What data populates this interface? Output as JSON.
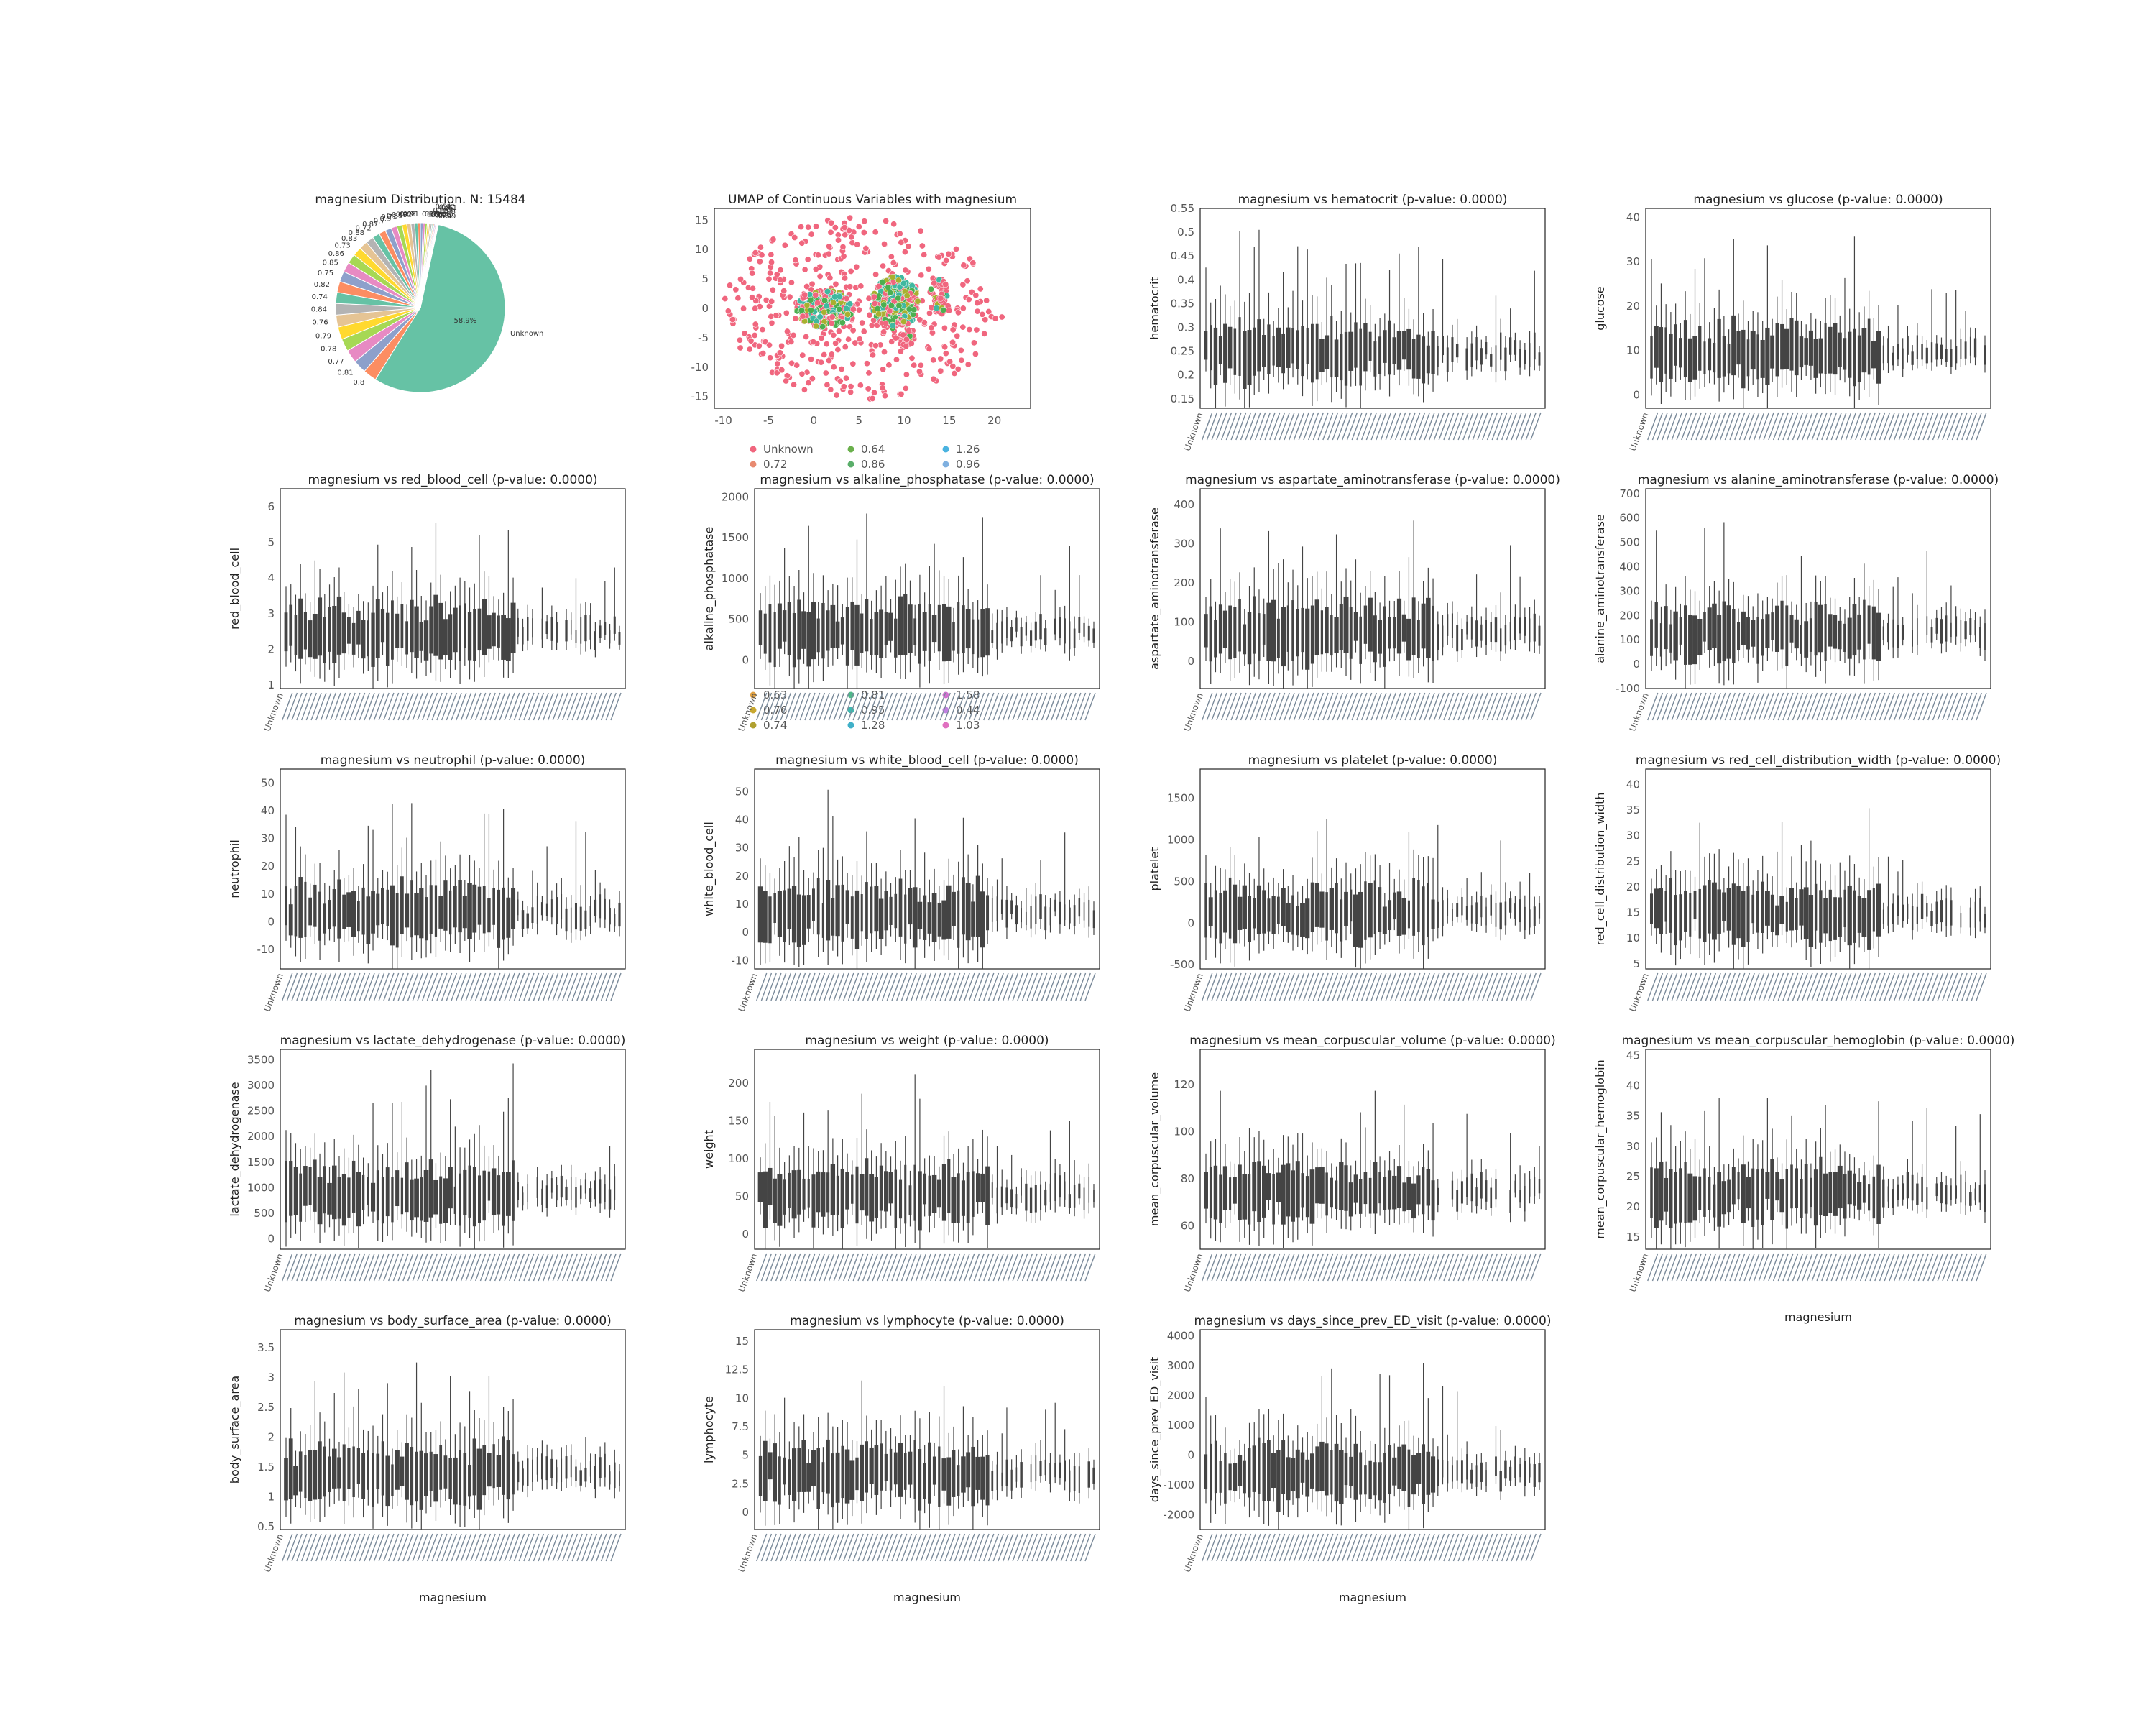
{
  "chart_data": [
    {
      "type": "pie",
      "title": "magnesium Distribution. N: 15484",
      "slices": [
        {
          "label": "Unknown",
          "percent": 58.9,
          "pct_label": "58.9%",
          "color": "#66c2a5"
        },
        {
          "label": "0.8",
          "percent": 2.6,
          "color": "#fc8d62"
        },
        {
          "label": "0.81",
          "percent": 2.5,
          "color": "#8da0cb"
        },
        {
          "label": "0.77",
          "percent": 2.5,
          "color": "#e78ac3"
        },
        {
          "label": "0.78",
          "percent": 2.4,
          "color": "#a6d854"
        },
        {
          "label": "0.79",
          "percent": 2.4,
          "color": "#ffd92f"
        },
        {
          "label": "0.76",
          "percent": 2.3,
          "color": "#e5c494"
        },
        {
          "label": "0.84",
          "percent": 2.2,
          "color": "#b3b3b3"
        },
        {
          "label": "0.74",
          "percent": 2.1,
          "color": "#66c2a5"
        },
        {
          "label": "0.82",
          "percent": 2.1,
          "color": "#fc8d62"
        },
        {
          "label": "0.75",
          "percent": 2.0,
          "color": "#8da0cb"
        },
        {
          "label": "0.85",
          "percent": 1.9,
          "color": "#e78ac3"
        },
        {
          "label": "0.86",
          "percent": 1.8,
          "color": "#a6d854"
        },
        {
          "label": "0.73",
          "percent": 1.7,
          "color": "#ffd92f"
        },
        {
          "label": "0.83",
          "percent": 1.6,
          "color": "#e5c494"
        },
        {
          "label": "0.88",
          "percent": 1.5,
          "color": "#b3b3b3"
        },
        {
          "label": "0.72",
          "percent": 1.4,
          "color": "#66c2a5"
        },
        {
          "label": "0.87",
          "percent": 1.3,
          "color": "#fc8d62"
        },
        {
          "label": "0.7",
          "percent": 1.2,
          "color": "#8da0cb"
        },
        {
          "label": "0.9",
          "percent": 1.1,
          "color": "#e78ac3"
        },
        {
          "label": "0.71",
          "percent": 1.0,
          "color": "#a6d854"
        },
        {
          "label": "0.89",
          "percent": 0.9,
          "color": "#ffd92f"
        },
        {
          "label": "0.69",
          "percent": 0.8,
          "color": "#e5c494"
        },
        {
          "label": "0.92",
          "percent": 0.7,
          "color": "#b3b3b3"
        },
        {
          "label": "0.68",
          "percent": 0.6,
          "color": "#66c2a5"
        },
        {
          "label": "0.91",
          "percent": 0.5,
          "color": "#fc8d62"
        },
        {
          "label": "0.67",
          "percent": 0.5,
          "color": "#8da0cb"
        },
        {
          "label": "0.93",
          "percent": 0.4,
          "color": "#e78ac3"
        },
        {
          "label": "0.66",
          "percent": 0.4,
          "color": "#a6d854"
        },
        {
          "label": "0.94",
          "percent": 0.3,
          "color": "#ffd92f"
        },
        {
          "label": "0.65",
          "percent": 0.3,
          "color": "#e5c494"
        },
        {
          "label": "0.95",
          "percent": 0.3,
          "color": "#b3b3b3"
        },
        {
          "label": "0.64",
          "percent": 0.2,
          "color": "#66c2a5"
        },
        {
          "label": "0.96",
          "percent": 0.2,
          "color": "#fc8d62"
        },
        {
          "label": "0.63",
          "percent": 0.2,
          "color": "#8da0cb"
        },
        {
          "label": "0.97",
          "percent": 0.2,
          "color": "#e78ac3"
        },
        {
          "label": "0.62",
          "percent": 0.1,
          "color": "#a6d854"
        },
        {
          "label": "0.98",
          "percent": 0.1,
          "color": "#ffd92f"
        },
        {
          "label": "0.61",
          "percent": 0.1,
          "color": "#e5c494"
        },
        {
          "label": "0.99",
          "percent": 0.1,
          "color": "#b3b3b3"
        }
      ]
    },
    {
      "type": "scatter",
      "title": "UMAP of Continuous Variables with magnesium",
      "xlabel": "",
      "ylabel": "",
      "xlim": [
        -11,
        24
      ],
      "ylim": [
        -17,
        17
      ],
      "xticks": [
        -10,
        -5,
        0,
        5,
        10,
        15,
        20
      ],
      "yticks": [
        -15,
        -10,
        -5,
        0,
        5,
        10,
        15
      ],
      "colors": {
        "unknown": "#f0667e",
        "green": "#4caf50",
        "teal": "#3fb8a0",
        "olive": "#a8b030"
      },
      "legend": [
        {
          "label": "Unknown",
          "color": "#f0667e"
        },
        {
          "label": "0.64",
          "color": "#6ab04c"
        },
        {
          "label": "1.26",
          "color": "#4ab3e0"
        },
        {
          "label": "0.72",
          "color": "#e88a70"
        },
        {
          "label": "0.86",
          "color": "#5aae6a"
        },
        {
          "label": "0.96",
          "color": "#7fb0e0"
        },
        {
          "label": "0.63",
          "color": "#e0a040"
        },
        {
          "label": "0.81",
          "color": "#4fb88a"
        },
        {
          "label": "1.58",
          "color": "#d070d0"
        },
        {
          "label": "0.76",
          "color": "#c8a830"
        },
        {
          "label": "0.95",
          "color": "#40b8b0"
        },
        {
          "label": "0.44",
          "color": "#c080e0"
        },
        {
          "label": "0.74",
          "color": "#b0a030"
        },
        {
          "label": "1.28",
          "color": "#40b0c8"
        },
        {
          "label": "1.03",
          "color": "#e070c0"
        }
      ]
    }
  ],
  "violin_panels": [
    {
      "title": "magnesium vs hematocrit (p-value: 0.0000)",
      "ylabel": "hematocrit",
      "ylim": [
        0.13,
        0.55
      ],
      "yticks": [
        0.15,
        0.2,
        0.25,
        0.3,
        0.35,
        0.4,
        0.45,
        0.5,
        0.55
      ],
      "xlabel": "magnesium"
    },
    {
      "title": "magnesium vs glucose (p-value: 0.0000)",
      "ylabel": "glucose",
      "ylim": [
        -3,
        42
      ],
      "yticks": [
        0,
        10,
        20,
        30,
        40
      ],
      "xlabel": "magnesium"
    },
    {
      "title": "magnesium vs red_blood_cell (p-value: 0.0000)",
      "ylabel": "red_blood_cell",
      "ylim": [
        0.9,
        6.5
      ],
      "yticks": [
        1,
        2,
        3,
        4,
        5,
        6
      ],
      "xlabel": "magnesium"
    },
    {
      "title": "magnesium vs alkaline_phosphatase (p-value: 0.0000)",
      "ylabel": "alkaline_phosphatase",
      "ylim": [
        -350,
        2100
      ],
      "yticks": [
        0,
        500,
        1000,
        1500,
        2000
      ],
      "xlabel": "magnesium"
    },
    {
      "title": "magnesium vs aspartate_aminotransferase (p-value: 0.0000)",
      "ylabel": "aspartate_aminotransferase",
      "ylim": [
        -70,
        440
      ],
      "yticks": [
        0,
        100,
        200,
        300,
        400
      ],
      "xlabel": "magnesium"
    },
    {
      "title": "magnesium vs alanine_aminotransferase (p-value: 0.0000)",
      "ylabel": "alanine_aminotransferase",
      "ylim": [
        -100,
        720
      ],
      "yticks": [
        -100,
        0,
        100,
        200,
        300,
        400,
        500,
        600,
        700
      ],
      "xlabel": "magnesium"
    },
    {
      "title": "magnesium vs neutrophil (p-value: 0.0000)",
      "ylabel": "neutrophil",
      "ylim": [
        -17,
        55
      ],
      "yticks": [
        -10,
        0,
        10,
        20,
        30,
        40,
        50
      ],
      "xlabel": "magnesium"
    },
    {
      "title": "magnesium vs white_blood_cell (p-value: 0.0000)",
      "ylabel": "white_blood_cell",
      "ylim": [
        -13,
        58
      ],
      "yticks": [
        -10,
        0,
        10,
        20,
        30,
        40,
        50
      ],
      "xlabel": "magnesium"
    },
    {
      "title": "magnesium vs platelet (p-value: 0.0000)",
      "ylabel": "platelet",
      "ylim": [
        -550,
        1850
      ],
      "yticks": [
        -500,
        0,
        500,
        1000,
        1500
      ],
      "xlabel": "magnesium"
    },
    {
      "title": "magnesium vs red_cell_distribution_width (p-value: 0.0000)",
      "ylabel": "red_cell_distribution_width",
      "ylim": [
        4,
        43
      ],
      "yticks": [
        5,
        10,
        15,
        20,
        25,
        30,
        35,
        40
      ],
      "xlabel": "magnesium"
    },
    {
      "title": "magnesium vs lactate_dehydrogenase (p-value: 0.0000)",
      "ylabel": "lactate_dehydrogenase",
      "ylim": [
        -200,
        3700
      ],
      "yticks": [
        0,
        500,
        1000,
        1500,
        2000,
        2500,
        3000,
        3500
      ],
      "xlabel": "magnesium"
    },
    {
      "title": "magnesium vs weight (p-value: 0.0000)",
      "ylabel": "weight",
      "ylim": [
        -20,
        245
      ],
      "yticks": [
        0,
        50,
        100,
        150,
        200
      ],
      "xlabel": "magnesium"
    },
    {
      "title": "magnesium vs mean_corpuscular_volume (p-value: 0.0000)",
      "ylabel": "mean_corpuscular_volume",
      "ylim": [
        50,
        135
      ],
      "yticks": [
        60,
        80,
        100,
        120
      ],
      "xlabel": "magnesium"
    },
    {
      "title": "magnesium vs mean_corpuscular_hemoglobin (p-value: 0.0000)",
      "ylabel": "mean_corpuscular_hemoglobin",
      "ylim": [
        13,
        46
      ],
      "yticks": [
        15,
        20,
        25,
        30,
        35,
        40,
        45
      ],
      "xlabel": "magnesium"
    },
    {
      "title": "magnesium vs body_surface_area (p-value: 0.0000)",
      "ylabel": "body_surface_area",
      "ylim": [
        0.45,
        3.8
      ],
      "yticks": [
        0.5,
        1.0,
        1.5,
        2.0,
        2.5,
        3.0,
        3.5
      ],
      "xlabel": "magnesium"
    },
    {
      "title": "magnesium vs lymphocyte (p-value: 0.0000)",
      "ylabel": "lymphocyte",
      "ylim": [
        -1.5,
        16
      ],
      "yticks": [
        0.0,
        2.5,
        5.0,
        7.5,
        10.0,
        12.5,
        15.0
      ],
      "xlabel": "magnesium"
    },
    {
      "title": "magnesium vs days_since_prev_ED_visit (p-value: 0.0000)",
      "ylabel": "days_since_prev_ED_visit",
      "ylim": [
        -2500,
        4200
      ],
      "yticks": [
        -2000,
        -1000,
        0,
        1000,
        2000,
        3000,
        4000
      ],
      "xlabel": "magnesium"
    }
  ],
  "first_category_label": "Unknown",
  "bar_color": "#444444"
}
